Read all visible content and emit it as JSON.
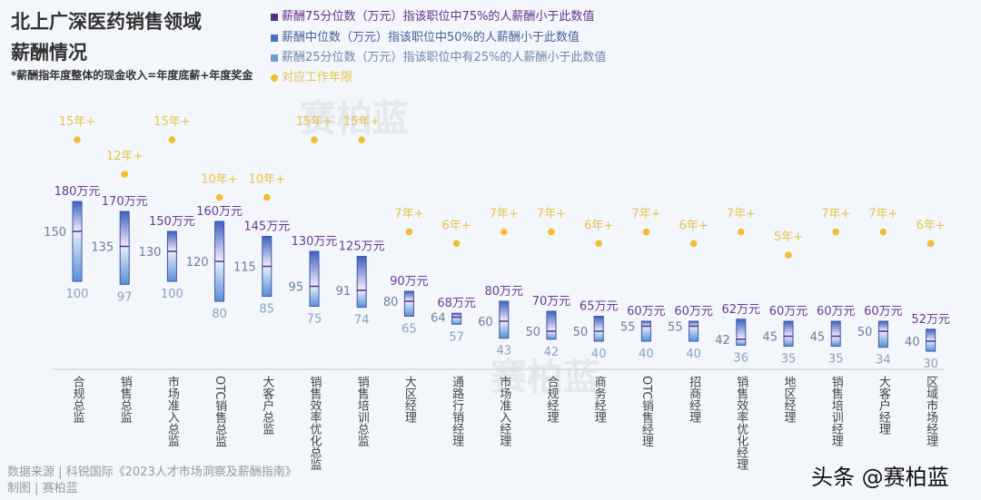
{
  "header": {
    "title_line1": "北上广深医药销售领域",
    "title_line2": "薪酬情况",
    "note": "*薪酬指年度整体的现金收入=年度底薪+年度奖金"
  },
  "legend": [
    {
      "label": "薪酬75分位数（万元）指该职位中75%的人薪酬小于此数值",
      "color": "#5b2a86"
    },
    {
      "label": "薪酬中位数（万元）指该职位中50%的人薪酬小于此数值",
      "color": "#4472c4"
    },
    {
      "label": "薪酬25分位数（万元）指该职位中有25%的人薪酬小于此数值",
      "color": "#6f9bd2"
    },
    {
      "label": "对应工作年限",
      "color": "#f0c030"
    }
  ],
  "watermark": "赛柏蓝",
  "chart_data": {
    "type": "bar",
    "subtype": "floating-range-with-median",
    "categories": [
      "合规总监",
      "销售总监",
      "市场准入总监",
      "OTC销售总监",
      "大客户总监",
      "销售效率优化总监",
      "销售培训总监",
      "大区经理",
      "通路行销经理",
      "市场准入经理",
      "合规经理",
      "商务经理",
      "OTC销售经理",
      "招商经理",
      "销售效率优化经理",
      "地区经理",
      "销售培训经理",
      "大客户经理",
      "区域市场经理"
    ],
    "p75": [
      180,
      170,
      150,
      160,
      145,
      130,
      125,
      90,
      68,
      80,
      70,
      65,
      60,
      60,
      62,
      60,
      60,
      60,
      52
    ],
    "median": [
      150,
      135,
      130,
      120,
      115,
      95,
      91,
      80,
      64,
      60,
      50,
      50,
      55,
      55,
      42,
      45,
      45,
      50,
      40
    ],
    "p25": [
      100,
      97,
      100,
      80,
      85,
      75,
      74,
      65,
      57,
      43,
      42,
      40,
      40,
      40,
      36,
      35,
      35,
      34,
      30
    ],
    "years": [
      15,
      12,
      15,
      10,
      10,
      15,
      15,
      7,
      6,
      7,
      7,
      6,
      7,
      6,
      7,
      5,
      7,
      7,
      6
    ],
    "p75_suffix": "万元",
    "years_suffix": "年+",
    "unit": "万元"
  },
  "footer": {
    "source": "数据来源 | 科锐国际《2023人才市场洞察及薪酬指南》",
    "made_by": "制图 | 赛柏蓝",
    "brand": "头条 @赛柏蓝"
  }
}
